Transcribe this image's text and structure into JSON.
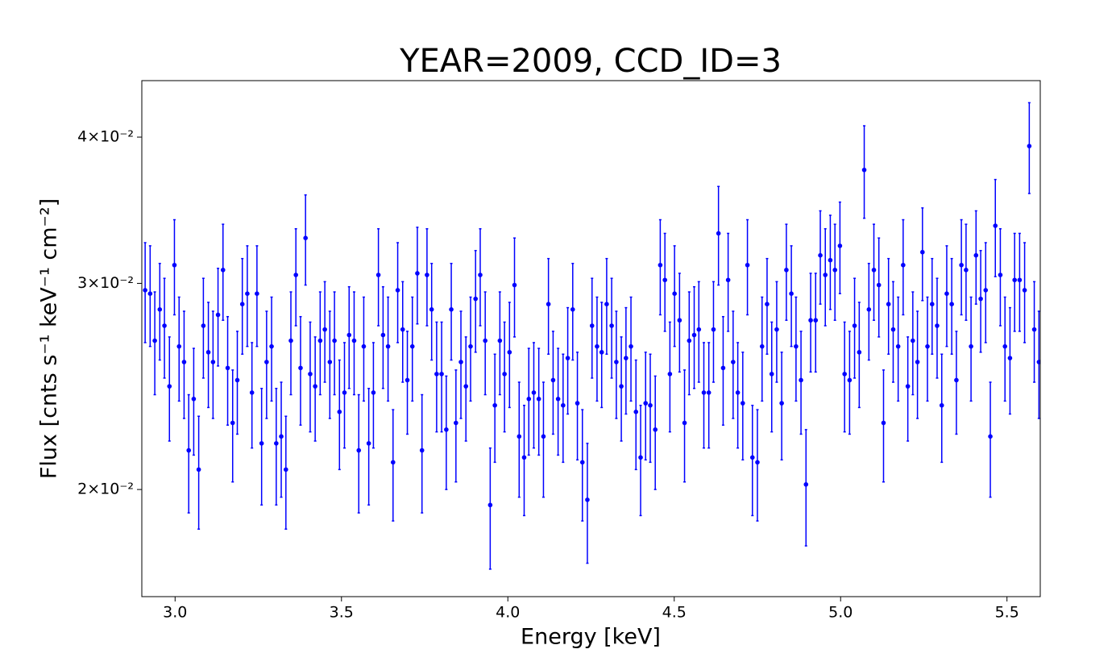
{
  "chart_data": {
    "type": "errorbar",
    "title": "YEAR=2009, CCD_ID=3",
    "xlabel": "Energy [keV]",
    "ylabel": "Flux [cnts s⁻¹ keV⁻¹ cm⁻²]",
    "color": "#0000ff",
    "ylog": true,
    "xlim": [
      2.9,
      5.6
    ],
    "ylim": [
      0.0162,
      0.0447
    ],
    "xticks": [
      {
        "value": 3,
        "label": "3.0"
      },
      3.5,
      {
        "value": 4,
        "label": "4.0"
      },
      4.5,
      {
        "value": 5,
        "label": "5.0"
      },
      5.5
    ],
    "yticks": [
      {
        "value": 0.02,
        "label": "2×10⁻²"
      },
      {
        "value": 0.03,
        "label": "3×10⁻²"
      },
      {
        "value": 0.04,
        "label": "4×10⁻²"
      }
    ],
    "x": [
      2.91,
      2.925,
      2.939,
      2.954,
      2.968,
      2.983,
      2.998,
      3.012,
      3.027,
      3.041,
      3.056,
      3.071,
      3.085,
      3.1,
      3.114,
      3.129,
      3.144,
      3.158,
      3.173,
      3.187,
      3.202,
      3.217,
      3.231,
      3.246,
      3.26,
      3.275,
      3.29,
      3.304,
      3.319,
      3.333,
      3.348,
      3.363,
      3.377,
      3.392,
      3.406,
      3.421,
      3.436,
      3.45,
      3.465,
      3.479,
      3.494,
      3.509,
      3.523,
      3.538,
      3.552,
      3.567,
      3.582,
      3.596,
      3.611,
      3.625,
      3.64,
      3.655,
      3.669,
      3.684,
      3.698,
      3.713,
      3.728,
      3.742,
      3.757,
      3.771,
      3.786,
      3.801,
      3.815,
      3.83,
      3.844,
      3.859,
      3.874,
      3.888,
      3.903,
      3.917,
      3.932,
      3.947,
      3.961,
      3.976,
      3.99,
      4.005,
      4.02,
      4.034,
      4.049,
      4.063,
      4.078,
      4.093,
      4.107,
      4.122,
      4.136,
      4.151,
      4.166,
      4.18,
      4.195,
      4.209,
      4.224,
      4.239,
      4.253,
      4.268,
      4.282,
      4.297,
      4.312,
      4.326,
      4.341,
      4.355,
      4.37,
      4.385,
      4.399,
      4.414,
      4.428,
      4.443,
      4.458,
      4.472,
      4.487,
      4.501,
      4.516,
      4.531,
      4.545,
      4.56,
      4.574,
      4.589,
      4.604,
      4.618,
      4.633,
      4.647,
      4.662,
      4.677,
      4.691,
      4.706,
      4.72,
      4.735,
      4.75,
      4.764,
      4.779,
      4.793,
      4.808,
      4.823,
      4.837,
      4.852,
      4.866,
      4.881,
      4.896,
      4.91,
      4.925,
      4.939,
      4.954,
      4.969,
      4.983,
      4.998,
      5.012,
      5.027,
      5.042,
      5.056,
      5.071,
      5.085,
      5.1,
      5.115,
      5.129,
      5.144,
      5.158,
      5.173,
      5.188,
      5.202,
      5.217,
      5.231,
      5.246,
      5.261,
      5.275,
      5.29,
      5.304,
      5.319,
      5.334,
      5.348,
      5.363,
      5.377,
      5.392,
      5.407,
      5.421,
      5.436,
      5.45,
      5.465,
      5.48,
      5.494,
      5.509,
      5.523,
      5.538,
      5.553,
      5.567,
      5.582,
      5.596
    ],
    "values": [
      0.0296,
      0.0294,
      0.0268,
      0.0285,
      0.0276,
      0.0245,
      0.0311,
      0.0265,
      0.0257,
      0.0216,
      0.0239,
      0.0208,
      0.0276,
      0.0262,
      0.0257,
      0.0282,
      0.0308,
      0.0254,
      0.0228,
      0.0248,
      0.0288,
      0.0294,
      0.0242,
      0.0294,
      0.0219,
      0.0257,
      0.0265,
      0.0219,
      0.0222,
      0.0208,
      0.0268,
      0.0305,
      0.0254,
      0.0328,
      0.0251,
      0.0245,
      0.0268,
      0.0274,
      0.0257,
      0.0268,
      0.0233,
      0.0242,
      0.0271,
      0.0268,
      0.0216,
      0.0265,
      0.0219,
      0.0242,
      0.0305,
      0.0271,
      0.0265,
      0.0211,
      0.0296,
      0.0274,
      0.0248,
      0.0265,
      0.0306,
      0.0216,
      0.0305,
      0.0285,
      0.0251,
      0.0251,
      0.0225,
      0.0285,
      0.0228,
      0.0257,
      0.0245,
      0.0265,
      0.0291,
      0.0305,
      0.0268,
      0.0194,
      0.0236,
      0.0268,
      0.0251,
      0.0262,
      0.0299,
      0.0222,
      0.0213,
      0.0239,
      0.0242,
      0.0239,
      0.0222,
      0.0288,
      0.0248,
      0.0239,
      0.0236,
      0.0259,
      0.0285,
      0.0237,
      0.0211,
      0.0196,
      0.0276,
      0.0265,
      0.0262,
      0.0288,
      0.0276,
      0.0257,
      0.0245,
      0.0259,
      0.0265,
      0.0233,
      0.0213,
      0.0237,
      0.0236,
      0.0225,
      0.0311,
      0.0302,
      0.0251,
      0.0294,
      0.0279,
      0.0228,
      0.0268,
      0.0271,
      0.0274,
      0.0242,
      0.0242,
      0.0274,
      0.0331,
      0.0254,
      0.0302,
      0.0257,
      0.0242,
      0.0237,
      0.0311,
      0.0213,
      0.0211,
      0.0265,
      0.0288,
      0.0251,
      0.0274,
      0.0237,
      0.0308,
      0.0294,
      0.0265,
      0.0248,
      0.0202,
      0.0279,
      0.0279,
      0.0317,
      0.0305,
      0.0314,
      0.0308,
      0.0323,
      0.0251,
      0.0248,
      0.0276,
      0.0262,
      0.0375,
      0.0285,
      0.0308,
      0.0299,
      0.0228,
      0.0288,
      0.0274,
      0.0265,
      0.0311,
      0.0245,
      0.0268,
      0.0257,
      0.0319,
      0.0265,
      0.0288,
      0.0276,
      0.0236,
      0.0294,
      0.0288,
      0.0248,
      0.0311,
      0.0308,
      0.0265,
      0.0317,
      0.0291,
      0.0296,
      0.0222,
      0.0336,
      0.0305,
      0.0265,
      0.0259,
      0.0302,
      0.0302,
      0.0296,
      0.0393,
      0.0274,
      0.0257
    ],
    "errors": [
      0.0029,
      0.0029,
      0.0027,
      0.0027,
      0.0027,
      0.0025,
      0.0029,
      0.0027,
      0.0027,
      0.0025,
      0.0025,
      0.0023,
      0.0027,
      0.0027,
      0.0027,
      0.0027,
      0.0029,
      0.0027,
      0.0025,
      0.0025,
      0.0027,
      0.0029,
      0.0025,
      0.0029,
      0.0025,
      0.0027,
      0.0027,
      0.0025,
      0.0025,
      0.0023,
      0.0027,
      0.0029,
      0.0027,
      0.0029,
      0.0027,
      0.0025,
      0.0027,
      0.0027,
      0.0027,
      0.0027,
      0.0025,
      0.0025,
      0.0027,
      0.0027,
      0.0025,
      0.0027,
      0.0025,
      0.0025,
      0.0029,
      0.0027,
      0.0027,
      0.0023,
      0.0029,
      0.0027,
      0.0025,
      0.0027,
      0.0029,
      0.0025,
      0.0029,
      0.0027,
      0.0027,
      0.0027,
      0.0025,
      0.0027,
      0.0025,
      0.0027,
      0.0025,
      0.0027,
      0.0029,
      0.0029,
      0.0027,
      0.0023,
      0.0025,
      0.0027,
      0.0027,
      0.0027,
      0.0029,
      0.0025,
      0.0023,
      0.0025,
      0.0025,
      0.0025,
      0.0025,
      0.0027,
      0.0025,
      0.0025,
      0.0025,
      0.0027,
      0.0027,
      0.0025,
      0.0023,
      0.0023,
      0.0027,
      0.0027,
      0.0027,
      0.0027,
      0.0027,
      0.0027,
      0.0025,
      0.0027,
      0.0027,
      0.0025,
      0.0023,
      0.0025,
      0.0025,
      0.0025,
      0.0029,
      0.0029,
      0.0027,
      0.0029,
      0.0027,
      0.0025,
      0.0027,
      0.0027,
      0.0027,
      0.0025,
      0.0025,
      0.0027,
      0.0032,
      0.0027,
      0.0029,
      0.0027,
      0.0025,
      0.0025,
      0.0029,
      0.0023,
      0.0023,
      0.0027,
      0.0027,
      0.0027,
      0.0027,
      0.0025,
      0.0029,
      0.0029,
      0.0027,
      0.0025,
      0.0023,
      0.0027,
      0.0027,
      0.0029,
      0.0029,
      0.0029,
      0.0029,
      0.0029,
      0.0027,
      0.0025,
      0.0027,
      0.0027,
      0.0034,
      0.0027,
      0.0029,
      0.0029,
      0.0025,
      0.0027,
      0.0027,
      0.0027,
      0.0029,
      0.0025,
      0.0027,
      0.0027,
      0.0029,
      0.0027,
      0.0027,
      0.0027,
      0.0025,
      0.0029,
      0.0027,
      0.0025,
      0.0029,
      0.0029,
      0.0027,
      0.0029,
      0.0029,
      0.0029,
      0.0025,
      0.0032,
      0.0029,
      0.0027,
      0.0027,
      0.0029,
      0.0029,
      0.0029,
      0.0035,
      0.0027,
      0.0027
    ]
  }
}
